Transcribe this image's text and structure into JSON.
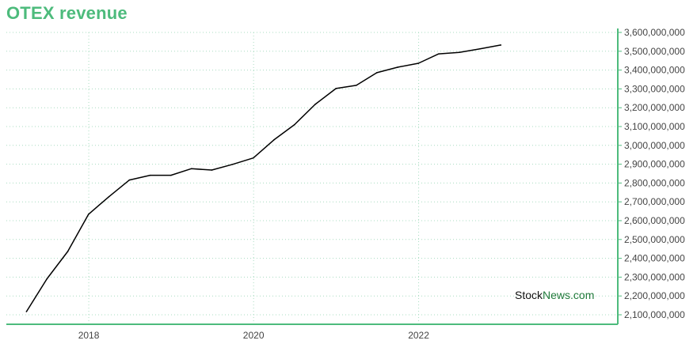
{
  "title": "OTEX revenue",
  "watermark": {
    "part1": "Stock",
    "part2": "News.com"
  },
  "colors": {
    "title": "#4dbb7c",
    "axis": "#4dbb7c",
    "grid": "#a8dcc0",
    "line": "#000000",
    "watermark_dark": "#111111",
    "watermark_green": "#1f7a3a"
  },
  "chart_data": {
    "type": "line",
    "title": "OTEX revenue",
    "xlabel": "",
    "ylabel": "",
    "xlim": [
      "2017-01-01",
      "2024-06-01"
    ],
    "ylim": [
      2100000000,
      3600000000
    ],
    "grid": true,
    "y_axis_side": "right",
    "x_ticks": [
      {
        "label": "2018",
        "date": "2018-01-01"
      },
      {
        "label": "2020",
        "date": "2020-01-01"
      },
      {
        "label": "2022",
        "date": "2022-01-01"
      }
    ],
    "y_ticks": [
      {
        "label": "2,100,000,000",
        "value": 2100000000
      },
      {
        "label": "2,200,000,000",
        "value": 2200000000
      },
      {
        "label": "2,300,000,000",
        "value": 2300000000
      },
      {
        "label": "2,400,000,000",
        "value": 2400000000
      },
      {
        "label": "2,500,000,000",
        "value": 2500000000
      },
      {
        "label": "2,600,000,000",
        "value": 2600000000
      },
      {
        "label": "2,700,000,000",
        "value": 2700000000
      },
      {
        "label": "2,800,000,000",
        "value": 2800000000
      },
      {
        "label": "2,900,000,000",
        "value": 2900000000
      },
      {
        "label": "3,000,000,000",
        "value": 3000000000
      },
      {
        "label": "3,100,000,000",
        "value": 3100000000
      },
      {
        "label": "3,200,000,000",
        "value": 3200000000
      },
      {
        "label": "3,300,000,000",
        "value": 3300000000
      },
      {
        "label": "3,400,000,000",
        "value": 3400000000
      },
      {
        "label": "3,500,000,000",
        "value": 3500000000
      },
      {
        "label": "3,600,000,000",
        "value": 3600000000
      }
    ],
    "series": [
      {
        "points": [
          {
            "x": "2017-03-31",
            "y": 2117000000
          },
          {
            "x": "2017-06-30",
            "y": 2291000000
          },
          {
            "x": "2017-09-30",
            "y": 2436000000
          },
          {
            "x": "2017-12-31",
            "y": 2634000000
          },
          {
            "x": "2018-03-31",
            "y": 2727000000
          },
          {
            "x": "2018-06-30",
            "y": 2816000000
          },
          {
            "x": "2018-09-30",
            "y": 2841000000
          },
          {
            "x": "2018-12-31",
            "y": 2841000000
          },
          {
            "x": "2019-03-31",
            "y": 2876000000
          },
          {
            "x": "2019-06-30",
            "y": 2869000000
          },
          {
            "x": "2019-09-30",
            "y": 2899000000
          },
          {
            "x": "2019-12-31",
            "y": 2933000000
          },
          {
            "x": "2020-03-31",
            "y": 3029000000
          },
          {
            "x": "2020-06-30",
            "y": 3110000000
          },
          {
            "x": "2020-09-30",
            "y": 3218000000
          },
          {
            "x": "2020-12-31",
            "y": 3302000000
          },
          {
            "x": "2021-03-31",
            "y": 3319000000
          },
          {
            "x": "2021-06-30",
            "y": 3386000000
          },
          {
            "x": "2021-09-30",
            "y": 3415000000
          },
          {
            "x": "2021-12-31",
            "y": 3436000000
          },
          {
            "x": "2022-03-31",
            "y": 3486000000
          },
          {
            "x": "2022-06-30",
            "y": 3494000000
          },
          {
            "x": "2022-09-30",
            "y": 3513000000
          },
          {
            "x": "2022-12-31",
            "y": 3533000000
          }
        ]
      }
    ]
  }
}
